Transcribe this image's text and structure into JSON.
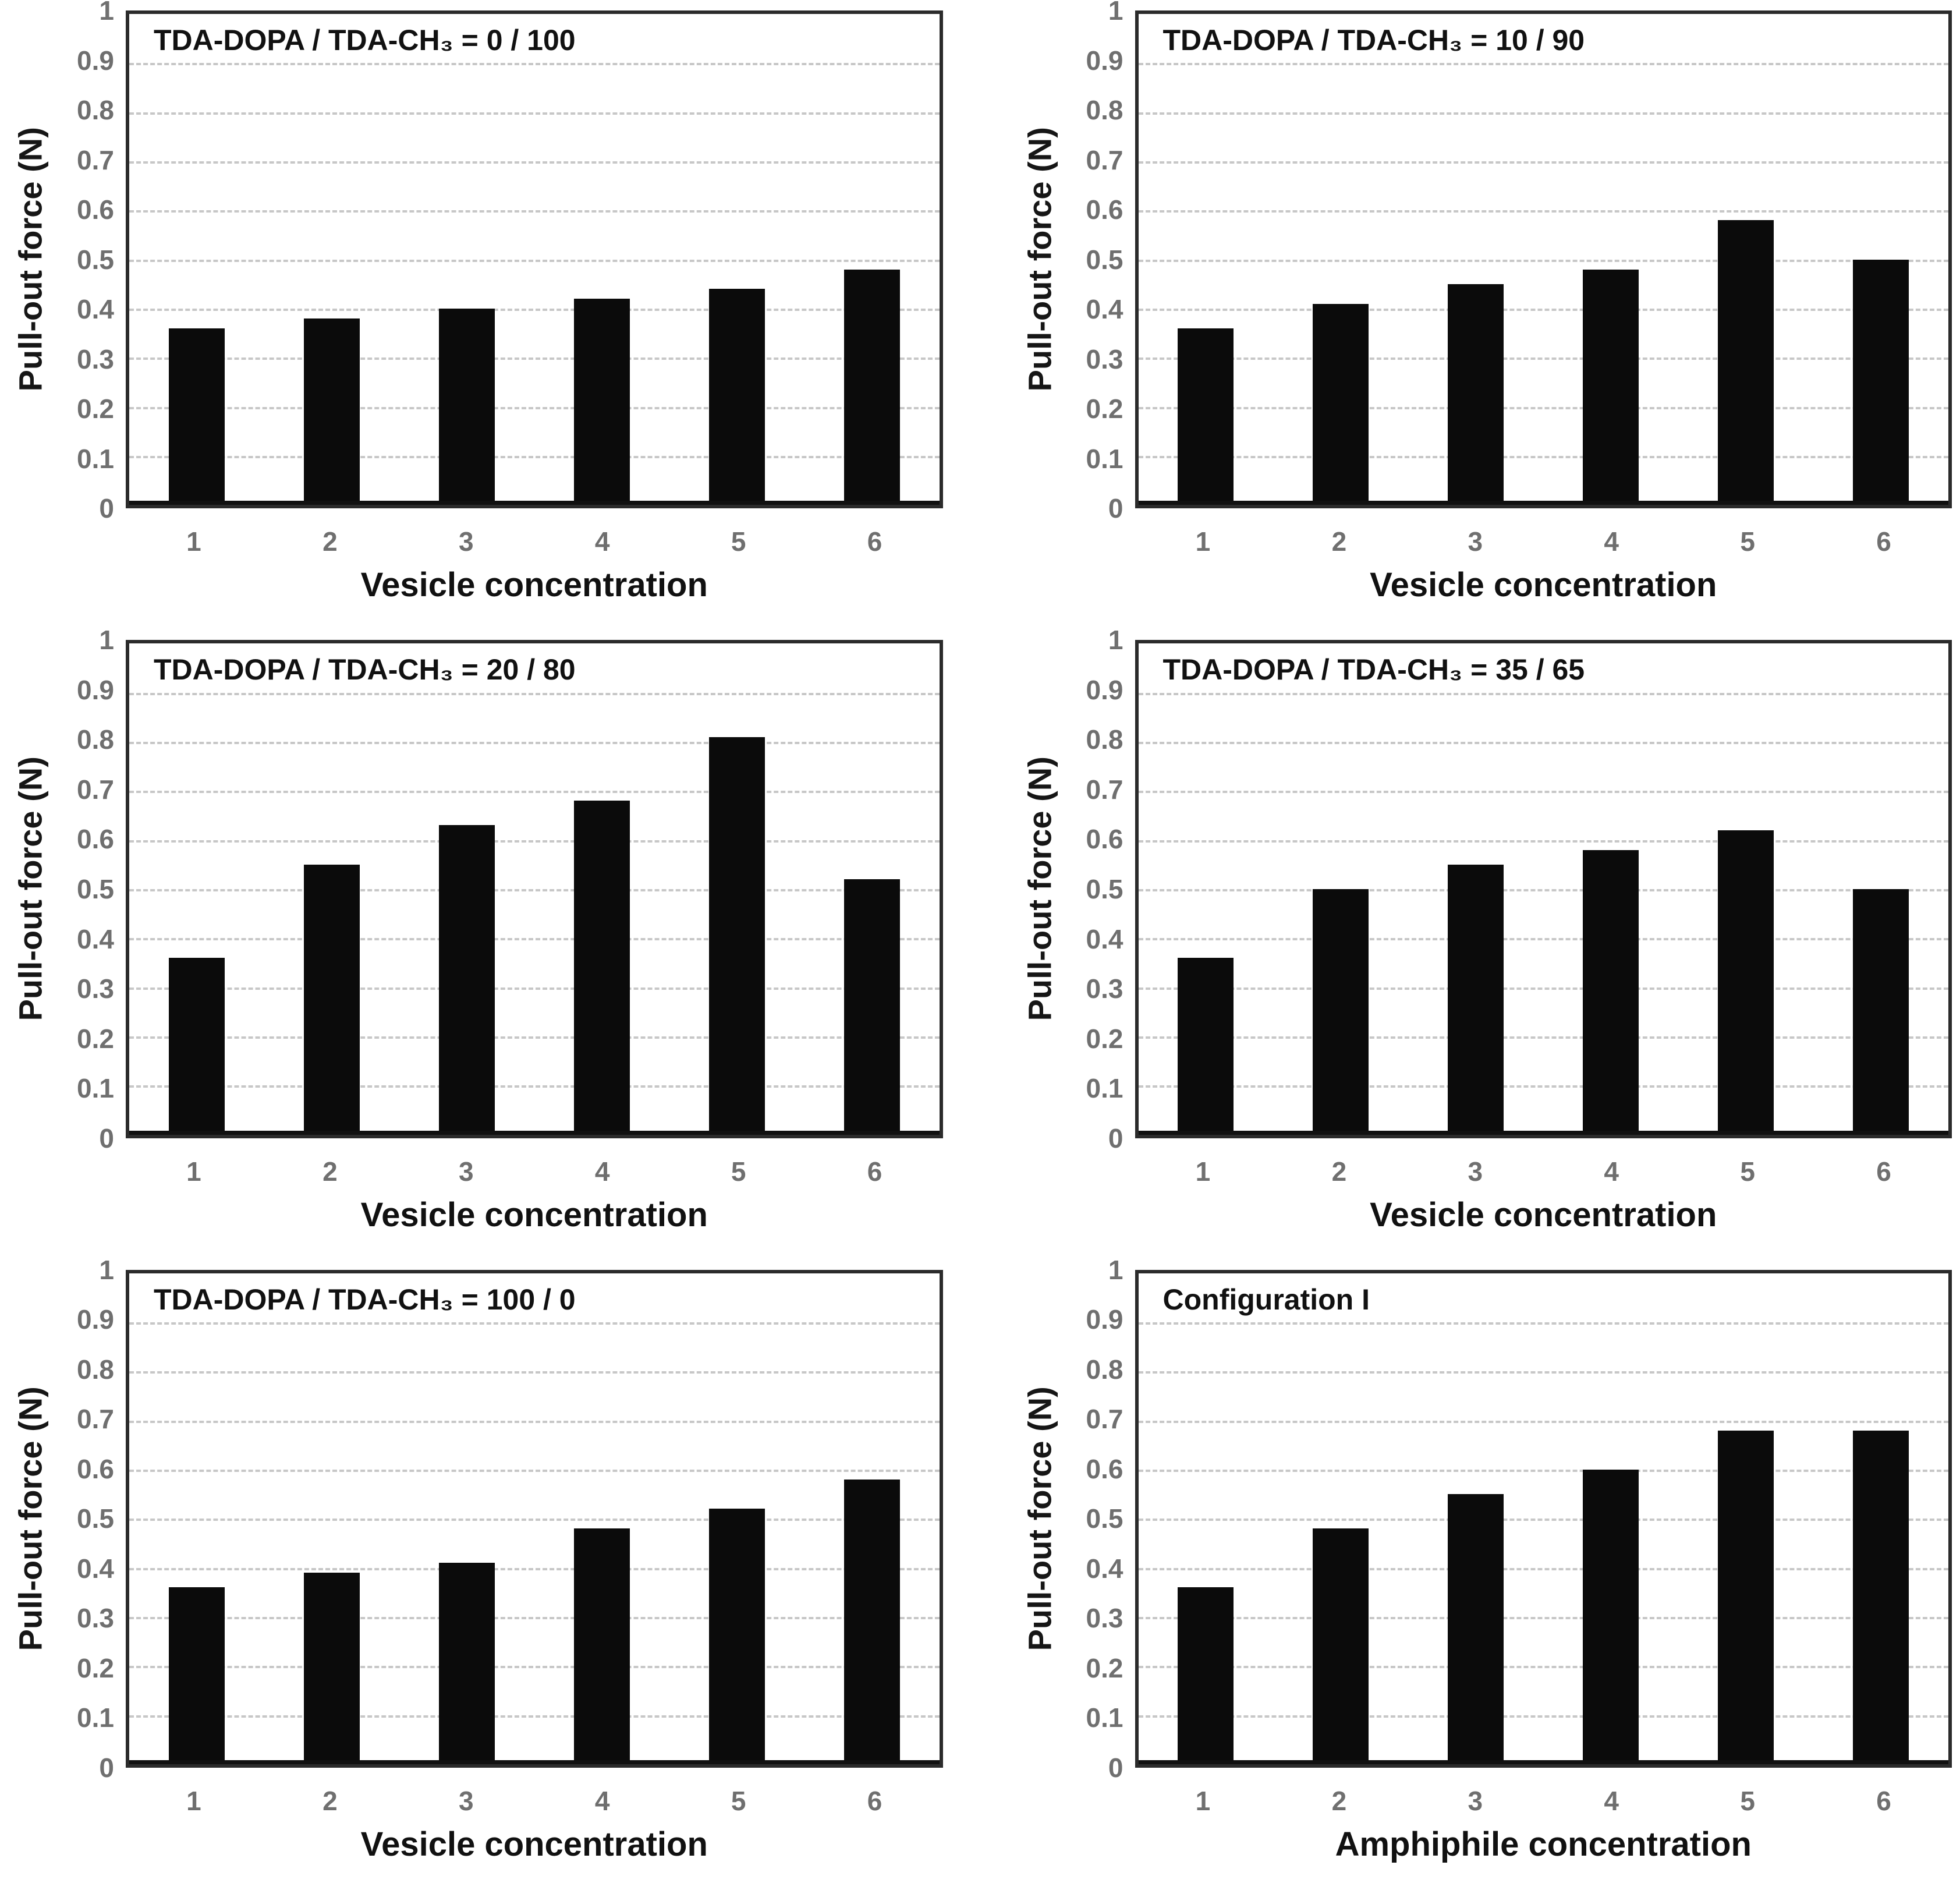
{
  "figure": {
    "panels_count": 6,
    "layout": "2x3-grid",
    "colors": {
      "bar": "#0b0b0b",
      "gridline": "#c7c7c7",
      "plot_border": "#2b2b2b",
      "tick_text": "#6f6f6f",
      "label_text": "#111111",
      "background": "#ffffff"
    }
  },
  "y_axis": {
    "label": "Pull-out force (N)",
    "ticks": [
      "1",
      "0.9",
      "0.8",
      "0.7",
      "0.6",
      "0.5",
      "0.4",
      "0.3",
      "0.2",
      "0.1",
      "0"
    ],
    "min": 0,
    "max": 1
  },
  "chart_data": [
    {
      "type": "bar",
      "title": "TDA-DOPA / TDA-CH₃ = 0 / 100",
      "categories": [
        "1",
        "2",
        "3",
        "4",
        "5",
        "6"
      ],
      "values": [
        0.36,
        0.38,
        0.4,
        0.42,
        0.44,
        0.48
      ],
      "xlabel": "Vesicle concentration",
      "ylabel": "Pull-out force (N)",
      "ylim": [
        0,
        1
      ],
      "ytick_step": 0.1,
      "grid": "horizontal-dashed",
      "legend": "none"
    },
    {
      "type": "bar",
      "title": "TDA-DOPA / TDA-CH₃ = 10 / 90",
      "categories": [
        "1",
        "2",
        "3",
        "4",
        "5",
        "6"
      ],
      "values": [
        0.36,
        0.41,
        0.45,
        0.48,
        0.58,
        0.5
      ],
      "xlabel": "Vesicle concentration",
      "ylabel": "Pull-out force (N)",
      "ylim": [
        0,
        1
      ],
      "ytick_step": 0.1,
      "grid": "horizontal-dashed",
      "legend": "none"
    },
    {
      "type": "bar",
      "title": "TDA-DOPA / TDA-CH₃ = 20 / 80",
      "categories": [
        "1",
        "2",
        "3",
        "4",
        "5",
        "6"
      ],
      "values": [
        0.36,
        0.55,
        0.63,
        0.68,
        0.81,
        0.52
      ],
      "xlabel": "Vesicle concentration",
      "ylabel": "Pull-out force (N)",
      "ylim": [
        0,
        1
      ],
      "ytick_step": 0.1,
      "grid": "horizontal-dashed",
      "legend": "none"
    },
    {
      "type": "bar",
      "title": "TDA-DOPA / TDA-CH₃ = 35 / 65",
      "categories": [
        "1",
        "2",
        "3",
        "4",
        "5",
        "6"
      ],
      "values": [
        0.36,
        0.5,
        0.55,
        0.58,
        0.62,
        0.5
      ],
      "xlabel": "Vesicle concentration",
      "ylabel": "Pull-out force (N)",
      "ylim": [
        0,
        1
      ],
      "ytick_step": 0.1,
      "grid": "horizontal-dashed",
      "legend": "none"
    },
    {
      "type": "bar",
      "title": "TDA-DOPA / TDA-CH₃ = 100 / 0",
      "categories": [
        "1",
        "2",
        "3",
        "4",
        "5",
        "6"
      ],
      "values": [
        0.36,
        0.39,
        0.41,
        0.48,
        0.52,
        0.58
      ],
      "xlabel": "Vesicle concentration",
      "ylabel": "Pull-out force (N)",
      "ylim": [
        0,
        1
      ],
      "ytick_step": 0.1,
      "grid": "horizontal-dashed",
      "legend": "none"
    },
    {
      "type": "bar",
      "title": "Configuration I",
      "categories": [
        "1",
        "2",
        "3",
        "4",
        "5",
        "6"
      ],
      "values": [
        0.36,
        0.48,
        0.55,
        0.6,
        0.68,
        0.68
      ],
      "xlabel": "Amphiphile concentration",
      "ylabel": "Pull-out force (N)",
      "ylim": [
        0,
        1
      ],
      "ytick_step": 0.1,
      "grid": "horizontal-dashed",
      "legend": "none"
    }
  ]
}
